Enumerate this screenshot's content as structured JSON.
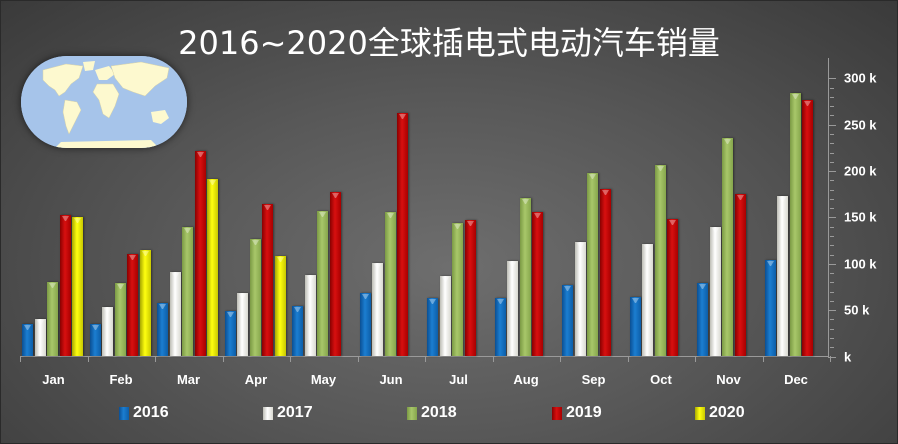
{
  "title": "2016~2020全球插电式电动汽车销量",
  "legend": [
    {
      "label": "2016",
      "color": "#1b7ed1"
    },
    {
      "label": "2017",
      "color": "#f2f2ee"
    },
    {
      "label": "2018",
      "color": "#a8c76a"
    },
    {
      "label": "2019",
      "color": "#d81010"
    },
    {
      "label": "2020",
      "color": "#ffff10"
    }
  ],
  "y_axis": {
    "tick_labels": [
      "k",
      "50 k",
      "100 k",
      "150 k",
      "200 k",
      "250 k",
      "300 k"
    ],
    "tick_values": [
      0,
      50,
      100,
      150,
      200,
      250,
      300
    ]
  },
  "x_axis": {
    "tick_labels": [
      "Jan",
      "Feb",
      "Mar",
      "Apr",
      "May",
      "Jun",
      "Jul",
      "Aug",
      "Sep",
      "Oct",
      "Nov",
      "Dec"
    ]
  },
  "chart_data": {
    "type": "bar",
    "title": "2016~2020全球插电式电动汽车销量",
    "xlabel": "",
    "ylabel": "",
    "unit": "k",
    "ylim": [
      0,
      300
    ],
    "y_axis_position": "right",
    "legend_position": "bottom",
    "grid": false,
    "categories": [
      "Jan",
      "Feb",
      "Mar",
      "Apr",
      "May",
      "Jun",
      "Jul",
      "Aug",
      "Sep",
      "Oct",
      "Nov",
      "Dec"
    ],
    "series": [
      {
        "name": "2016",
        "color": "#1b7ed1",
        "values": [
          35,
          35,
          58,
          49,
          54,
          69,
          63,
          63,
          77,
          64,
          79,
          104
        ]
      },
      {
        "name": "2017",
        "color": "#f2f2ee",
        "values": [
          40,
          53,
          91,
          68,
          88,
          101,
          87,
          103,
          123,
          121,
          140,
          173
        ]
      },
      {
        "name": "2018",
        "color": "#a8c76a",
        "values": [
          80,
          79,
          140,
          127,
          157,
          156,
          144,
          171,
          198,
          207,
          236,
          284
        ]
      },
      {
        "name": "2019",
        "color": "#d81010",
        "values": [
          153,
          111,
          222,
          164,
          177,
          263,
          147,
          156,
          181,
          148,
          175,
          277
        ]
      },
      {
        "name": "2020",
        "color": "#ffff10",
        "values": [
          150,
          115,
          191,
          108,
          null,
          null,
          null,
          null,
          null,
          null,
          null,
          null
        ]
      }
    ]
  }
}
